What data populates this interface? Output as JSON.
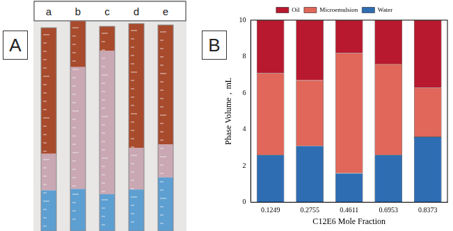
{
  "panel_a": {
    "label": "A",
    "tube_labels": [
      "a",
      "b",
      "c",
      "d",
      "e"
    ]
  },
  "panel_b": {
    "label": "B"
  },
  "chart_data": {
    "type": "bar",
    "stacked": true,
    "x_label": "C12E6 Mole Fraction",
    "y_label": "Phase Volume，mL",
    "categories": [
      "0.1249",
      "0.2755",
      "0.4611",
      "0.6953",
      "0.8373"
    ],
    "series": [
      {
        "name": "Water",
        "color": "#2f6db3",
        "values": [
          2.6,
          3.1,
          1.6,
          2.6,
          3.6
        ]
      },
      {
        "name": "Microemulsion",
        "color": "#e0675a",
        "values": [
          4.5,
          3.6,
          6.6,
          5.0,
          2.7
        ]
      },
      {
        "name": "Oil",
        "color": "#b8192f",
        "values": [
          2.9,
          3.3,
          1.8,
          2.4,
          3.7
        ]
      }
    ],
    "ylim": [
      0,
      10
    ],
    "yticks": [
      0,
      2,
      4,
      6,
      8,
      10
    ],
    "grid": false,
    "legend": "top"
  }
}
